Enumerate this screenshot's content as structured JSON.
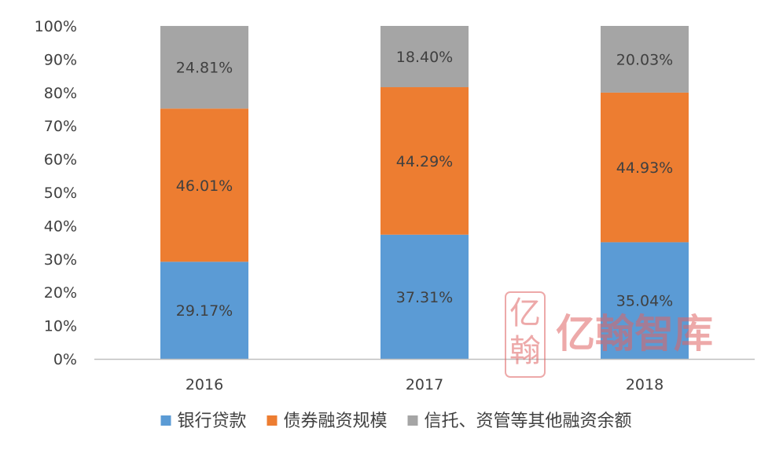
{
  "chart_data": {
    "type": "bar",
    "stacked": true,
    "percent": true,
    "title": "",
    "xlabel": "",
    "ylabel": "",
    "categories": [
      "2016",
      "2017",
      "2018"
    ],
    "ylim": [
      0,
      100
    ],
    "yticks": [
      "0%",
      "10%",
      "20%",
      "30%",
      "40%",
      "50%",
      "60%",
      "70%",
      "80%",
      "90%",
      "100%"
    ],
    "grid": false,
    "legend_position": "bottom",
    "series": [
      {
        "name": "银行贷款",
        "color": "#5B9BD5",
        "values": [
          29.17,
          37.31,
          35.04
        ],
        "labels": [
          "29.17%",
          "37.31%",
          "35.04%"
        ]
      },
      {
        "name": "债券融资规模",
        "color": "#ED7D31",
        "values": [
          46.01,
          44.29,
          44.93
        ],
        "labels": [
          "46.01%",
          "44.29%",
          "44.93%"
        ]
      },
      {
        "name": "信托、资管等其他融资余额",
        "color": "#A5A5A5",
        "values": [
          24.81,
          18.4,
          20.03
        ],
        "labels": [
          "24.81%",
          "18.40%",
          "20.03%"
        ]
      }
    ]
  },
  "watermark": {
    "text": "亿翰智库",
    "seal_text": "亿翰",
    "color": "#E06464"
  },
  "colors": {
    "axis": "#BFBFBF",
    "tick_label": "#404040",
    "data_label": "#404040"
  }
}
